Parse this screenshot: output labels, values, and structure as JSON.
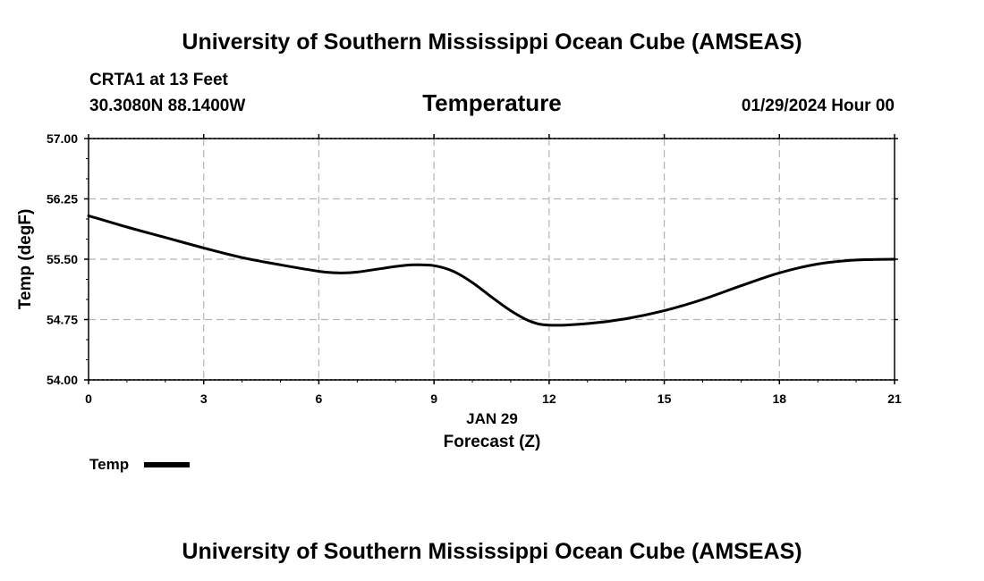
{
  "header": {
    "org_title": "University of Southern Mississippi Ocean Cube (AMSEAS)",
    "station": "CRTA1 at 13 Feet",
    "location": "30.3080N  88.1400W",
    "forecast_time": "01/29/2024 Hour 00"
  },
  "footer": {
    "org_title": "University of Southern Mississippi Ocean Cube (AMSEAS)"
  },
  "chart_data": {
    "type": "line",
    "title": "Temperature",
    "xlabel": "Forecast (Z)",
    "xsublabel": "JAN 29",
    "ylabel": "Temp (degF)",
    "xlim": [
      0,
      21
    ],
    "ylim": [
      54.0,
      57.0
    ],
    "x_ticks": [
      0,
      3,
      6,
      9,
      12,
      15,
      18,
      21
    ],
    "x_tick_labels": [
      "0",
      "3",
      "6",
      "9",
      "12",
      "15",
      "18",
      "21"
    ],
    "y_ticks": [
      54.0,
      54.75,
      55.5,
      56.25,
      57.0
    ],
    "y_tick_labels": [
      "54.00",
      "54.75",
      "55.50",
      "56.25",
      "57.00"
    ],
    "grid": true,
    "legend_position": "bottom-left",
    "series": [
      {
        "name": "Temp",
        "color": "#000000",
        "x": [
          0,
          1,
          2,
          3,
          4,
          5,
          6,
          6.5,
          7,
          8,
          8.5,
          9,
          9.5,
          10,
          10.5,
          11,
          11.5,
          12,
          13,
          14,
          15,
          16,
          17,
          18,
          19,
          20,
          21
        ],
        "y": [
          56.04,
          55.9,
          55.77,
          55.64,
          55.52,
          55.43,
          55.35,
          55.33,
          55.34,
          55.41,
          55.43,
          55.42,
          55.35,
          55.21,
          55.03,
          54.86,
          54.73,
          54.68,
          54.7,
          54.76,
          54.86,
          55.0,
          55.17,
          55.33,
          55.44,
          55.49,
          55.5
        ]
      }
    ]
  }
}
